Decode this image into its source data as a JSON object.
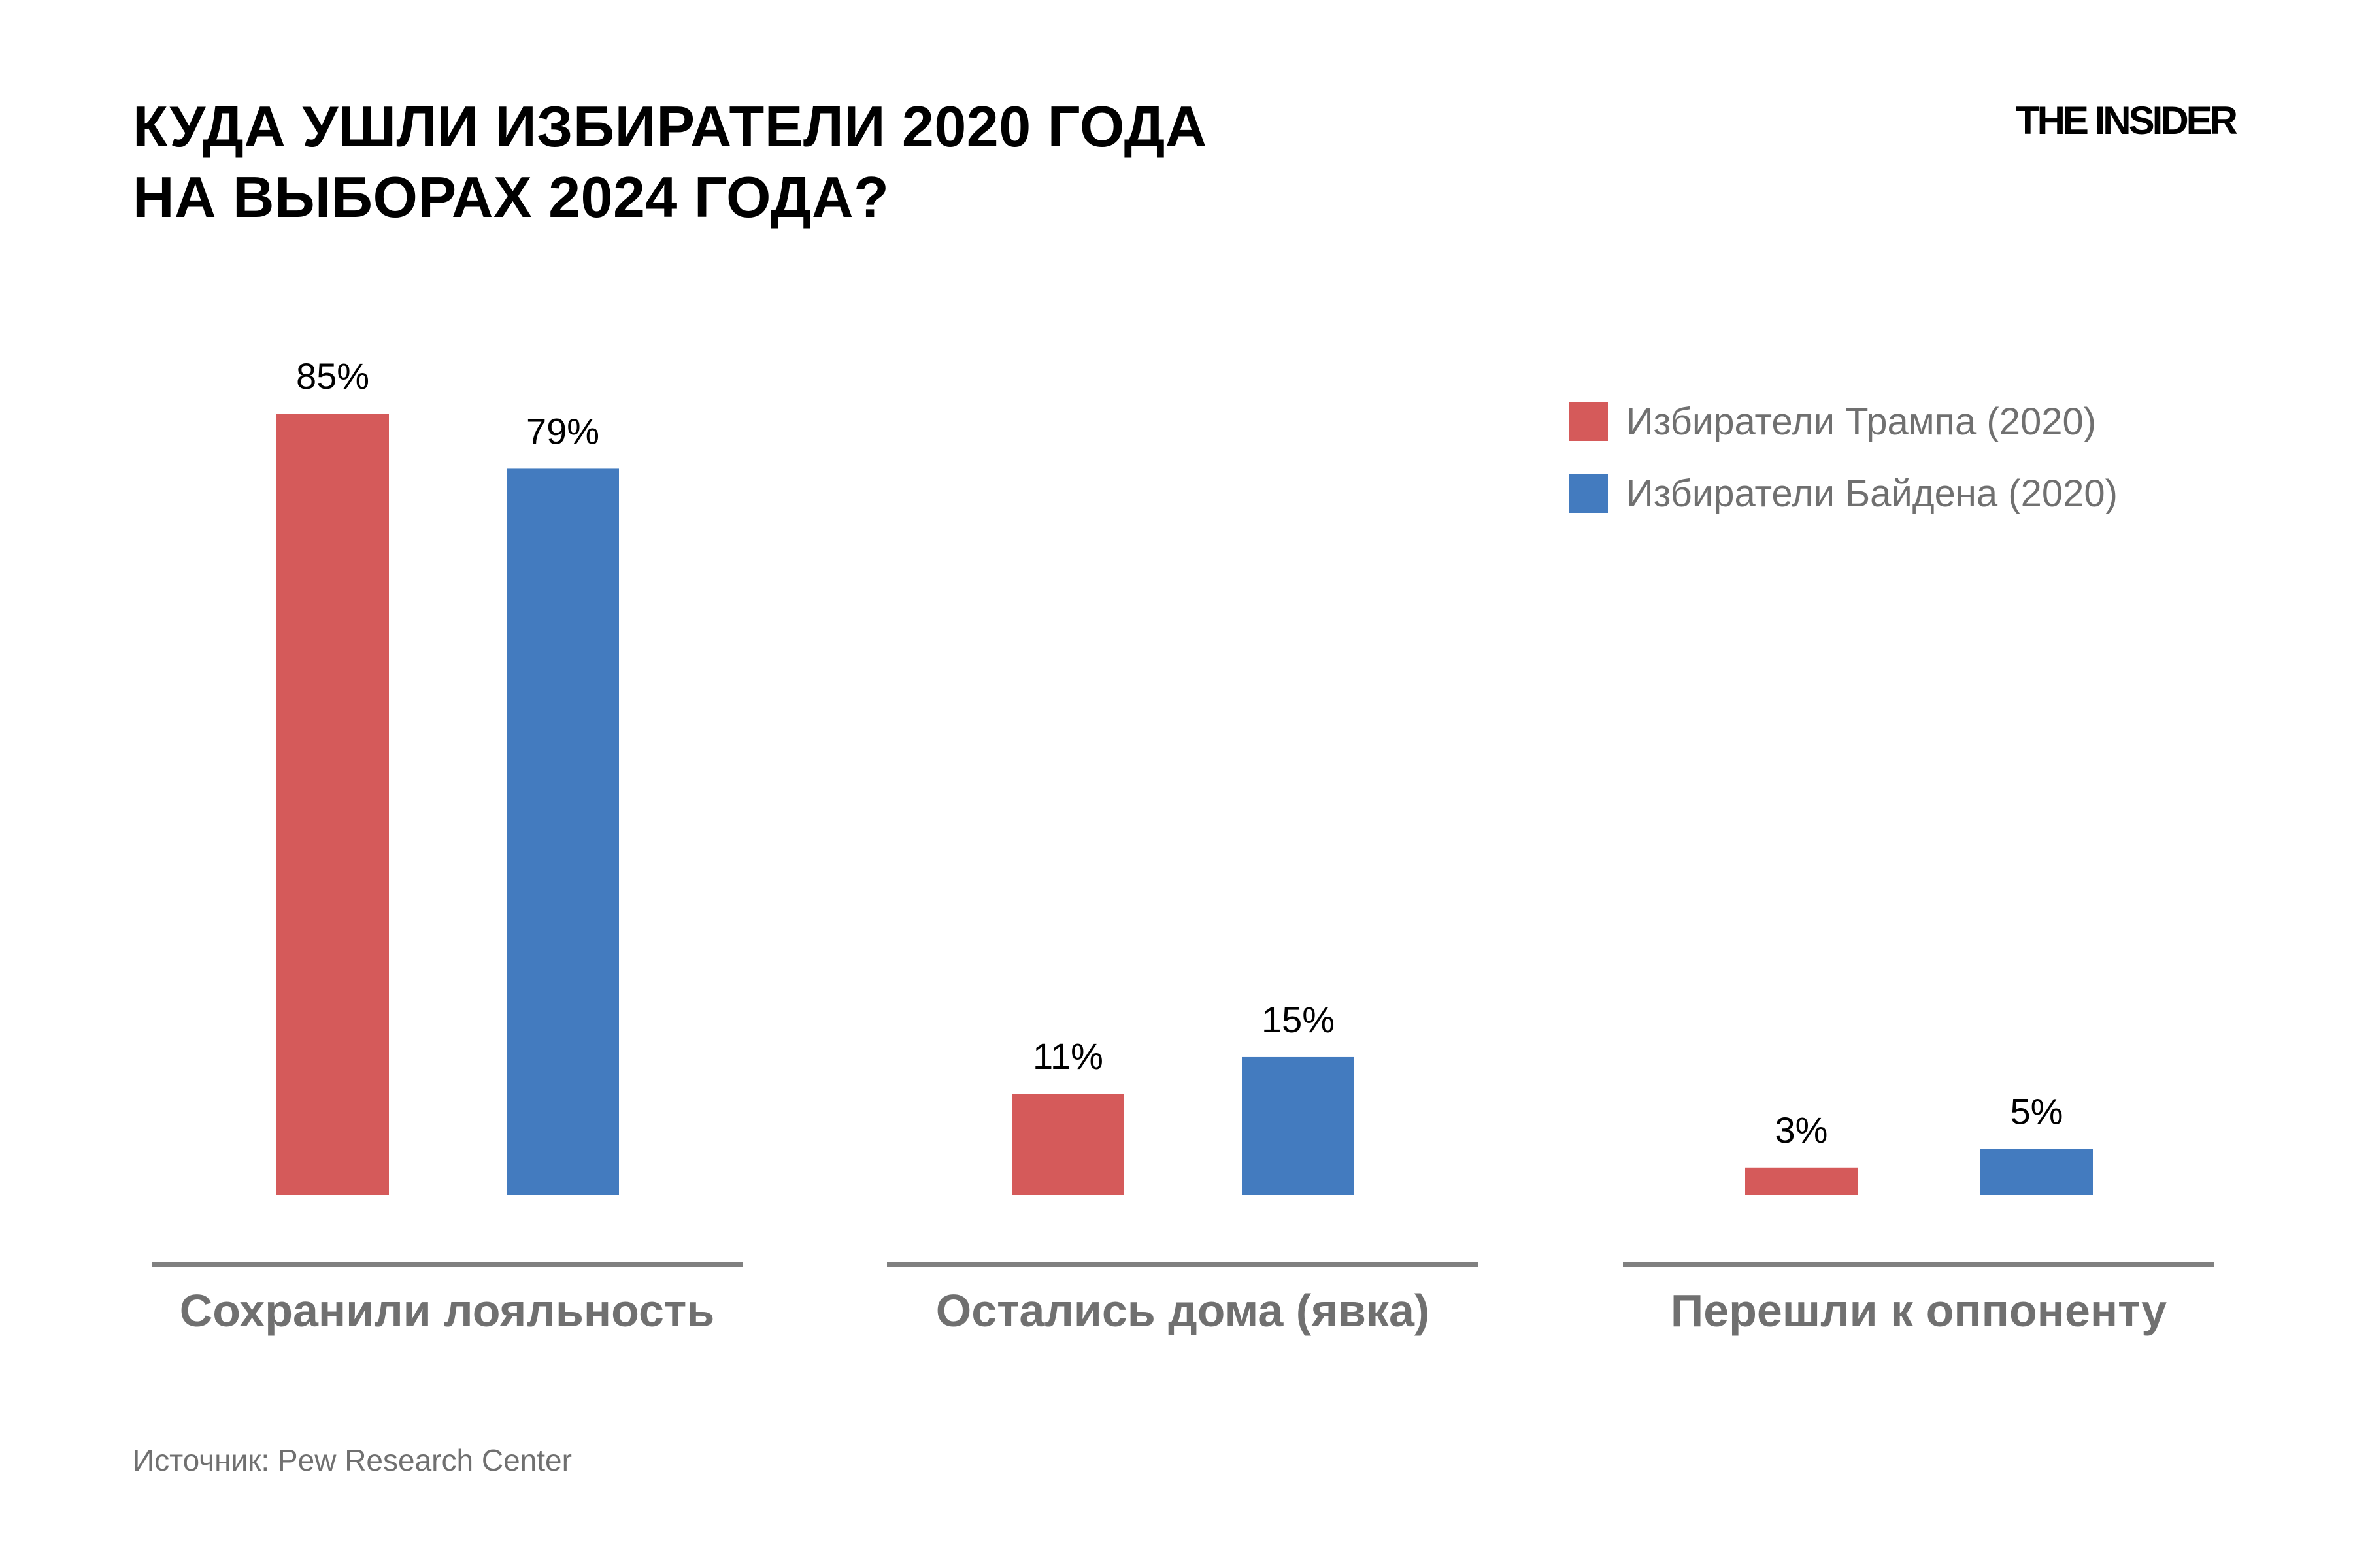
{
  "header": {
    "title_lines": [
      "КУДА УШЛИ ИЗБИРАТЕЛИ 2020 ГОДА",
      "НА ВЫБОРАХ 2024 ГОДА?"
    ],
    "logo": "THE INSIDER"
  },
  "footer": {
    "source": "Источник: Pew Research Center"
  },
  "colors": {
    "trump": "#d55a5a",
    "biden": "#437bbf",
    "category_label": "#707070",
    "baseline": "#808080",
    "legend_text": "#707070",
    "value_label": "#000000"
  },
  "chart_data": {
    "type": "bar",
    "title": "КУДА УШЛИ ИЗБИРАТЕЛИ 2020 ГОДА НА ВЫБОРАХ 2024 ГОДА?",
    "xlabel": "",
    "ylabel": "",
    "ylim": [
      0,
      85
    ],
    "grid": false,
    "legend_position": "top-right",
    "categories": [
      "Сохранили лояльность",
      "Остались дома (явка)",
      "Перешли к оппоненту"
    ],
    "series": [
      {
        "name": "Избиратели Трампа (2020)",
        "values": [
          85,
          11,
          3
        ],
        "labels": [
          "85%",
          "11%",
          "3%"
        ]
      },
      {
        "name": "Избиратели Байдена (2020)",
        "values": [
          79,
          15,
          5
        ],
        "labels": [
          "79%",
          "15%",
          "5%"
        ]
      }
    ]
  }
}
